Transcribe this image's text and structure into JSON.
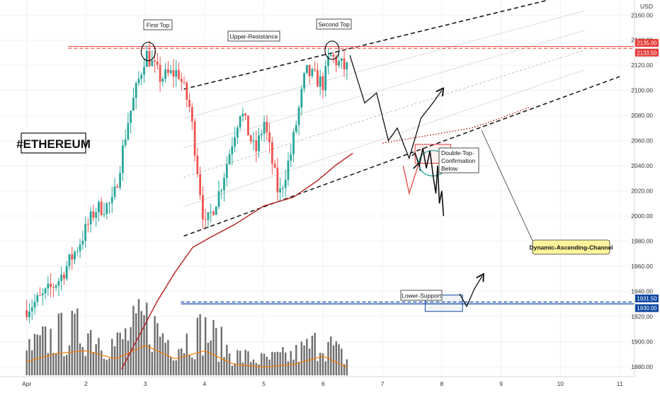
{
  "symbol_label": "#ETHEREUM",
  "currency_label": "USD",
  "annotations": {
    "first_top": "First Top",
    "second_top": "Second Top",
    "upper_resistance": "Upper-Resistance",
    "double_top_line1": "Double-Top-",
    "double_top_line2": "Confirmation",
    "double_top_line3": "Below",
    "dynamic_channel": "Dynamic-Ascending-Channel",
    "lower_support": "Lower-Support"
  },
  "colors": {
    "bull": "#26a69a",
    "bear": "#ef5350",
    "resistance": "#e53935",
    "support": "#0d47a1",
    "ma_long": "#b71c1c",
    "volume_ma": "#f57c00",
    "volume": "#555555",
    "callout": "#fff59d"
  },
  "chart_data": {
    "type": "candlestick",
    "x_ticks": [
      "Apr",
      "2",
      "3",
      "4",
      "5",
      "6",
      "7",
      "8",
      "9",
      "10",
      "11"
    ],
    "x_tick_days": [
      1,
      2,
      3,
      4,
      5,
      6,
      7,
      8,
      9,
      10,
      11
    ],
    "y_ticks": [
      1880,
      1900,
      1920,
      1940,
      1960,
      1980,
      2000,
      2020,
      2040,
      2060,
      2080,
      2100,
      2120,
      2140,
      2160
    ],
    "y_range": [
      1872,
      2172
    ],
    "x_range_days": [
      0.55,
      11.25
    ],
    "resistance_levels": [
      "2135.00",
      "2133.50"
    ],
    "support_levels": [
      "1931.50",
      "1930.00"
    ],
    "resistance_values": [
      2135.0,
      2133.5
    ],
    "support_values": [
      1931.5,
      1930.0
    ],
    "price_anchors": [
      {
        "day": 1.0,
        "price": 1925
      },
      {
        "day": 1.3,
        "price": 1935
      },
      {
        "day": 1.6,
        "price": 1950
      },
      {
        "day": 1.9,
        "price": 1975
      },
      {
        "day": 2.2,
        "price": 2005
      },
      {
        "day": 2.5,
        "price": 2010
      },
      {
        "day": 2.75,
        "price": 2075
      },
      {
        "day": 3.0,
        "price": 2120
      },
      {
        "day": 3.05,
        "price": 2130
      },
      {
        "day": 3.3,
        "price": 2110
      },
      {
        "day": 3.6,
        "price": 2115
      },
      {
        "day": 3.8,
        "price": 2085
      },
      {
        "day": 4.05,
        "price": 1990
      },
      {
        "day": 4.3,
        "price": 2020
      },
      {
        "day": 4.65,
        "price": 2085
      },
      {
        "day": 4.9,
        "price": 2050
      },
      {
        "day": 5.05,
        "price": 2075
      },
      {
        "day": 5.3,
        "price": 2015
      },
      {
        "day": 5.5,
        "price": 2050
      },
      {
        "day": 5.75,
        "price": 2115
      },
      {
        "day": 6.05,
        "price": 2105
      },
      {
        "day": 6.15,
        "price": 2128
      },
      {
        "day": 6.4,
        "price": 2118
      }
    ],
    "volume_anchors": [
      {
        "day": 1.0,
        "v": 0.25
      },
      {
        "day": 1.5,
        "v": 0.4
      },
      {
        "day": 2.0,
        "v": 0.45
      },
      {
        "day": 2.5,
        "v": 0.3
      },
      {
        "day": 3.0,
        "v": 0.55
      },
      {
        "day": 3.5,
        "v": 0.3
      },
      {
        "day": 4.0,
        "v": 0.45
      },
      {
        "day": 4.5,
        "v": 0.2
      },
      {
        "day": 5.0,
        "v": 0.15
      },
      {
        "day": 5.5,
        "v": 0.2
      },
      {
        "day": 6.0,
        "v": 0.35
      },
      {
        "day": 6.4,
        "v": 0.15
      }
    ],
    "ma_long": [
      {
        "day": 2.6,
        "price": 1878
      },
      {
        "day": 2.9,
        "price": 1905
      },
      {
        "day": 3.2,
        "price": 1932
      },
      {
        "day": 3.5,
        "price": 1955
      },
      {
        "day": 3.8,
        "price": 1975
      },
      {
        "day": 4.1,
        "price": 1983
      },
      {
        "day": 4.5,
        "price": 1993
      },
      {
        "day": 5.0,
        "price": 2008
      },
      {
        "day": 5.5,
        "price": 2015
      },
      {
        "day": 5.9,
        "price": 2028
      },
      {
        "day": 6.2,
        "price": 2040
      },
      {
        "day": 6.5,
        "price": 2050
      }
    ],
    "ma_long_projection": [
      {
        "day": 7.0,
        "price": 2058
      },
      {
        "day": 7.5,
        "price": 2062
      },
      {
        "day": 8.0,
        "price": 2066
      },
      {
        "day": 8.5,
        "price": 2070
      },
      {
        "day": 9.0,
        "price": 2078
      },
      {
        "day": 9.5,
        "price": 2087
      }
    ],
    "channel_upper": [
      {
        "day": 3.65,
        "price": 2101
      },
      {
        "day": 9.8,
        "price": 2172
      }
    ],
    "channel_lower": [
      {
        "day": 3.65,
        "price": 1984
      },
      {
        "day": 11.0,
        "price": 2111
      }
    ],
    "channel_fan_offsets": [
      0.2,
      0.4,
      0.6,
      0.8
    ],
    "projection_path": [
      {
        "day": 6.45,
        "price": 2128
      },
      {
        "day": 6.7,
        "price": 2090
      },
      {
        "day": 6.9,
        "price": 2098
      },
      {
        "day": 7.1,
        "price": 2060
      },
      {
        "day": 7.25,
        "price": 2070
      },
      {
        "day": 7.45,
        "price": 2046
      },
      {
        "day": 7.65,
        "price": 2078
      },
      {
        "day": 7.85,
        "price": 2090
      },
      {
        "day": 8.0,
        "price": 2100
      }
    ],
    "actual_path": [
      {
        "day": 7.5,
        "price": 2048
      },
      {
        "day": 7.55,
        "price": 2050
      },
      {
        "day": 7.62,
        "price": 2040
      },
      {
        "day": 7.68,
        "price": 2054
      },
      {
        "day": 7.74,
        "price": 2038
      },
      {
        "day": 7.8,
        "price": 2052
      },
      {
        "day": 7.86,
        "price": 2030
      },
      {
        "day": 7.9,
        "price": 2018
      },
      {
        "day": 7.93,
        "price": 2040
      },
      {
        "day": 7.96,
        "price": 2010
      },
      {
        "day": 8.0,
        "price": 2020
      },
      {
        "day": 8.03,
        "price": 2000
      }
    ],
    "support_projection": [
      {
        "day": 8.3,
        "price": 1938
      },
      {
        "day": 8.42,
        "price": 1928
      },
      {
        "day": 8.55,
        "price": 1942
      },
      {
        "day": 8.68,
        "price": 1952
      }
    ]
  }
}
